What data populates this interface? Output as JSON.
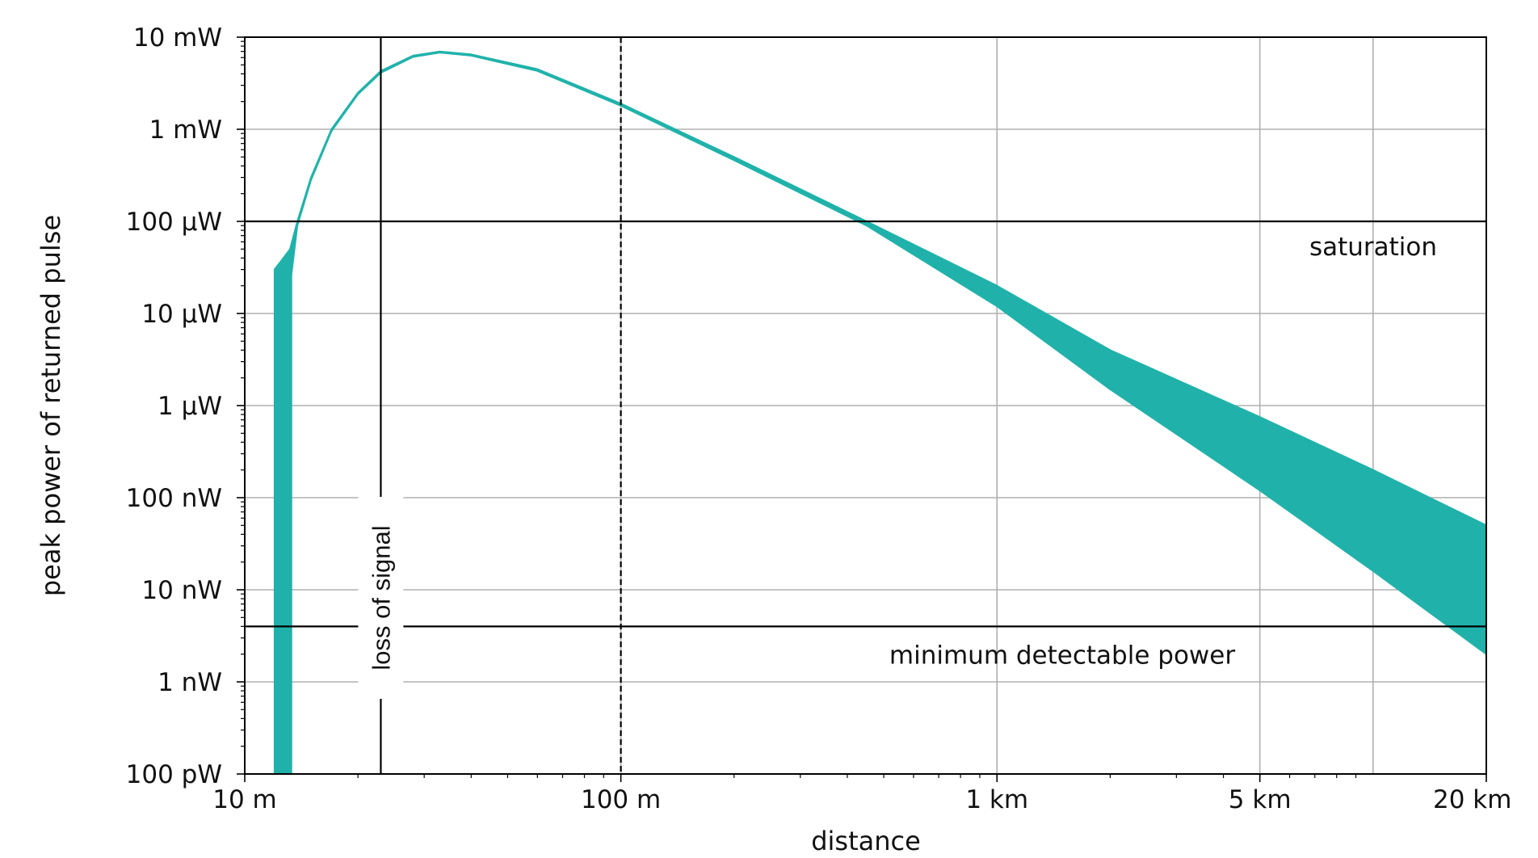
{
  "chart_data": {
    "type": "area",
    "xlabel": "distance",
    "ylabel": "peak power of returned pulse",
    "x_scale": "log",
    "y_scale": "log",
    "xlim_m": [
      10,
      20000
    ],
    "ylim_W": [
      1e-10,
      0.01
    ],
    "x_ticks": [
      {
        "value": 10,
        "label": "10 m"
      },
      {
        "value": 100,
        "label": "100 m"
      },
      {
        "value": 1000,
        "label": "1 km"
      },
      {
        "value": 5000,
        "label": "5 km"
      },
      {
        "value": 20000,
        "label": "20 km"
      }
    ],
    "x_grid": [
      10,
      100,
      1000,
      5000,
      10000,
      20000
    ],
    "y_ticks": [
      {
        "value": 0.01,
        "label": "10 mW"
      },
      {
        "value": 0.001,
        "label": "1 mW"
      },
      {
        "value": 0.0001,
        "label": "100 μW"
      },
      {
        "value": 1e-05,
        "label": "10 μW"
      },
      {
        "value": 1e-06,
        "label": "1 μW"
      },
      {
        "value": 1e-07,
        "label": "100 nW"
      },
      {
        "value": 1e-08,
        "label": "10 nW"
      },
      {
        "value": 1e-09,
        "label": "1 nW"
      },
      {
        "value": 1e-10,
        "label": "100 pW"
      }
    ],
    "band": {
      "color": "#20b2aa",
      "upper": [
        [
          12.0,
          3e-05
        ],
        [
          13.2,
          5e-05
        ],
        [
          13.8,
          0.0001
        ],
        [
          15.0,
          0.0003
        ],
        [
          17.0,
          0.001
        ],
        [
          20.0,
          0.0025
        ],
        [
          23.0,
          0.0043
        ],
        [
          28.0,
          0.0063
        ],
        [
          33.0,
          0.007
        ],
        [
          40.0,
          0.0065
        ],
        [
          60.0,
          0.0045
        ],
        [
          100.0,
          0.0019
        ],
        [
          200.0,
          0.0005
        ],
        [
          450.0,
          0.0001
        ],
        [
          1000.0,
          2e-05
        ],
        [
          2000.0,
          4e-06
        ],
        [
          5000.0,
          7.5e-07
        ],
        [
          10000.0,
          2e-07
        ],
        [
          20000.0,
          5e-08
        ]
      ],
      "lower": [
        [
          12.0,
          1e-10
        ],
        [
          13.3,
          1e-10
        ],
        [
          13.3,
          2.6e-05
        ],
        [
          13.8,
          9e-05
        ],
        [
          15.0,
          0.00028
        ],
        [
          17.0,
          0.00095
        ],
        [
          20.0,
          0.0024
        ],
        [
          23.0,
          0.0041
        ],
        [
          28.0,
          0.0061
        ],
        [
          33.0,
          0.0068
        ],
        [
          40.0,
          0.0063
        ],
        [
          60.0,
          0.0043
        ],
        [
          100.0,
          0.0018
        ],
        [
          200.0,
          0.00046
        ],
        [
          450.0,
          9e-05
        ],
        [
          1000.0,
          1.2e-05
        ],
        [
          2000.0,
          1.5e-06
        ],
        [
          5000.0,
          1.2e-07
        ],
        [
          10000.0,
          1.6e-08
        ],
        [
          20000.0,
          2e-09
        ]
      ]
    },
    "hlines": [
      {
        "value": 0.0001,
        "label": "saturation",
        "label_at_x": 10000
      },
      {
        "value": 4e-09,
        "label": "minimum detectable power",
        "label_at_x": 1200
      }
    ],
    "vlines": [
      {
        "value": 23,
        "style": "solid",
        "label": "loss of signal"
      },
      {
        "value": 100,
        "style": "dashed",
        "label": ""
      }
    ],
    "grid": true
  }
}
